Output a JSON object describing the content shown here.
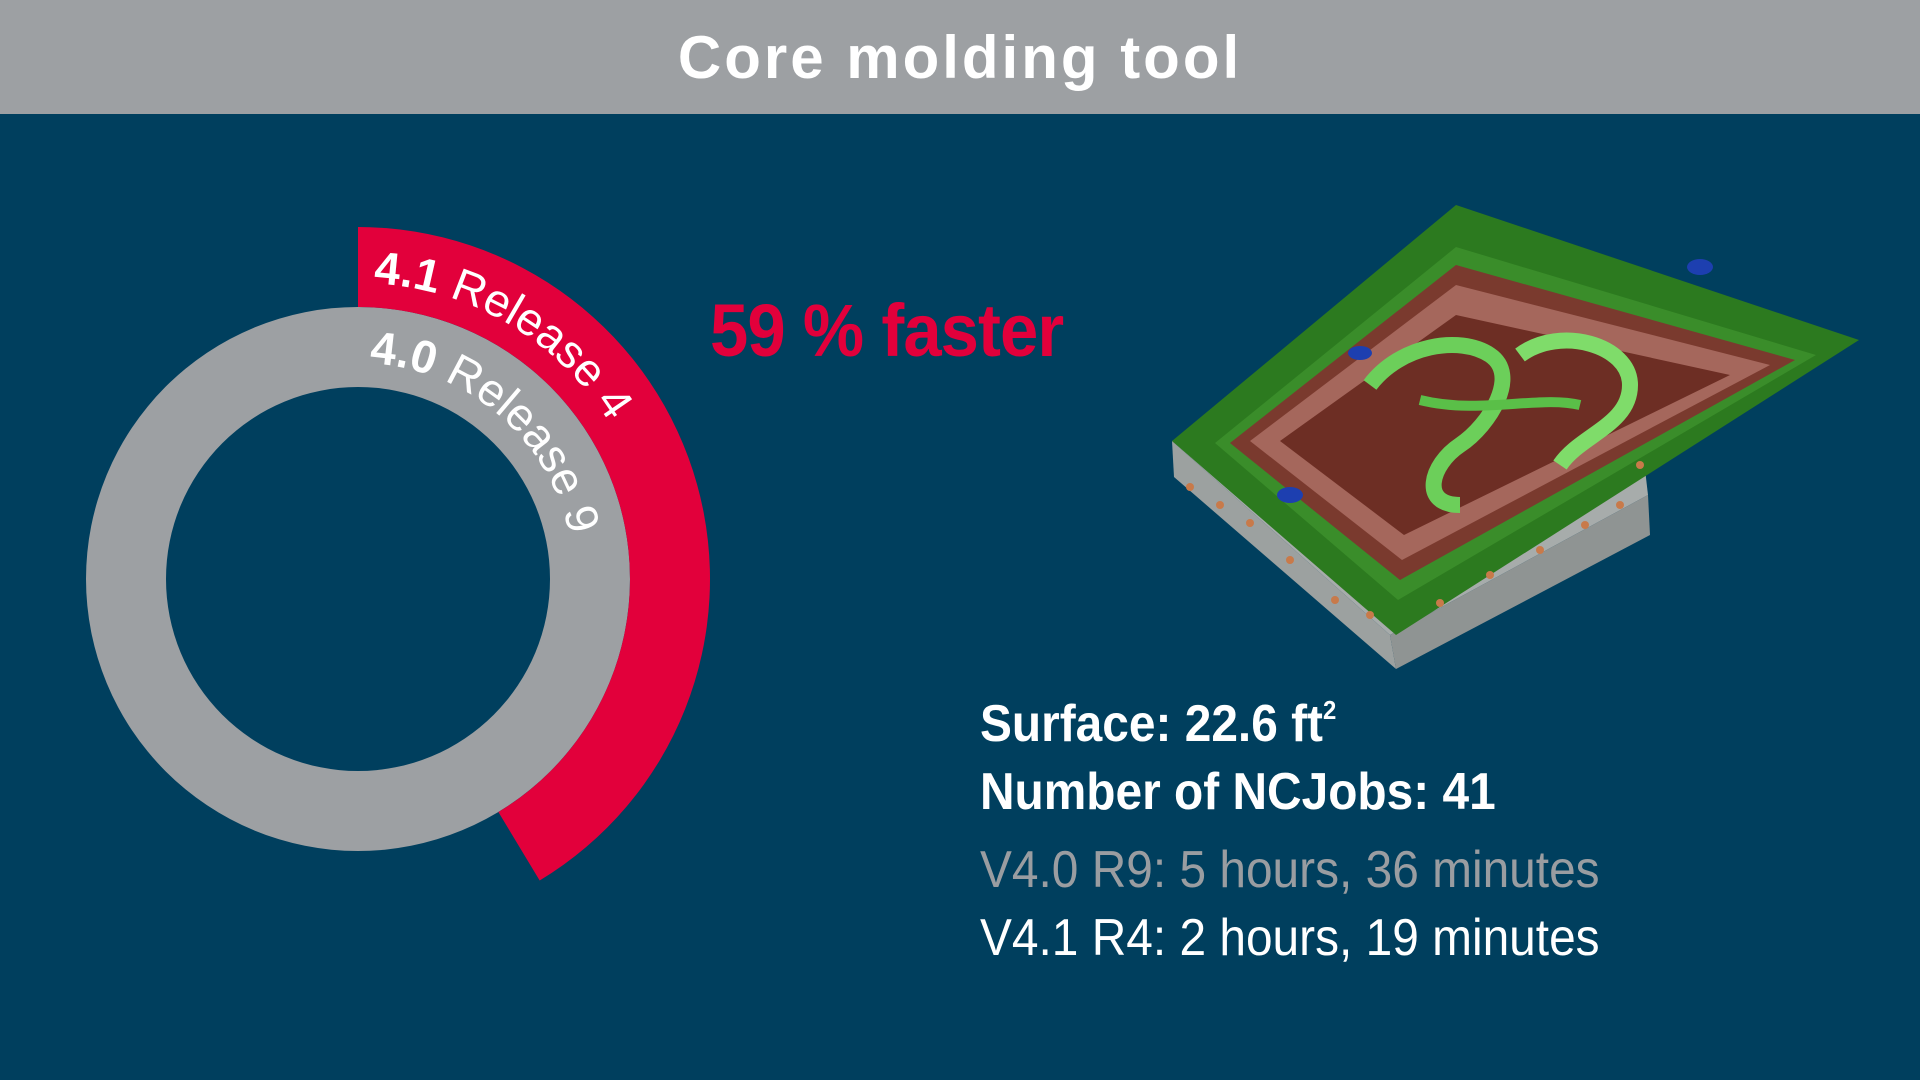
{
  "header": {
    "title": "Core molding tool"
  },
  "headline": "59 % faster",
  "colors": {
    "background": "#003f5e",
    "header_bar": "#9da0a3",
    "accent_red": "#e2003b",
    "ring_gray": "#9da0a3",
    "text_white": "#ffffff",
    "text_gray": "#9a9da1"
  },
  "stats": {
    "surface_label": "Surface: 22.6 ft",
    "surface_unit_sup": "2",
    "ncjobs": "Number of NCJobs: 41"
  },
  "times": {
    "old": "V4.0 R9: 5 hours, 36 minutes",
    "new": "V4.1 R4: 2 hours, 19 minutes"
  },
  "illustration": {
    "icon": "core-molding-tool-3d-part"
  },
  "chart_data": {
    "type": "radial-bar",
    "series": [
      {
        "version": "4.0",
        "release": "Release 9",
        "minutes": 336,
        "color": "#9da0a3"
      },
      {
        "version": "4.1",
        "release": "Release 4",
        "minutes": 139,
        "color": "#e2003b"
      }
    ],
    "unit": "minutes"
  }
}
